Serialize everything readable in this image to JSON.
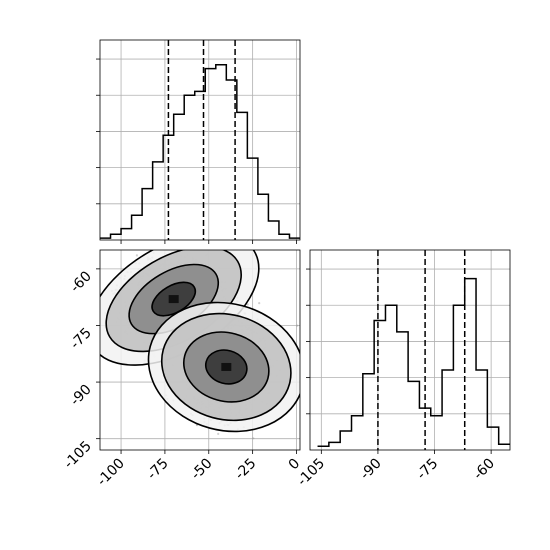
{
  "chart_data": {
    "type": "corner",
    "parameters": [
      "",
      ""
    ],
    "grid": true,
    "panels": [
      {
        "id": "hist-x",
        "type": "histogram",
        "xlim": [
          -112,
          2
        ],
        "ylim": [
          0,
          1.05
        ],
        "ytick_values": [
          0.19,
          0.38,
          0.57,
          0.76,
          0.95
        ],
        "bin_edges": [
          -112,
          -106,
          -100,
          -94,
          -88,
          -82,
          -76,
          -70,
          -64,
          -58,
          -52,
          -46,
          -40,
          -34,
          -28,
          -22,
          -16,
          -10,
          -4,
          2
        ],
        "counts": [
          0.01,
          0.03,
          0.06,
          0.13,
          0.27,
          0.41,
          0.55,
          0.66,
          0.76,
          0.78,
          0.9,
          0.92,
          0.84,
          0.67,
          0.43,
          0.24,
          0.1,
          0.03,
          0.01
        ],
        "quantile_lines": [
          -73,
          -53,
          -35
        ]
      },
      {
        "id": "scatter-2d",
        "type": "2d-density",
        "xlim": [
          -112,
          2
        ],
        "ylim": [
          -108,
          -55
        ],
        "xticks": [
          "-100",
          "-75",
          "-50",
          "-25",
          "0"
        ],
        "xtick_values": [
          -100,
          -75,
          -50,
          -25,
          0
        ],
        "yticks": [
          "-60",
          "-75",
          "-90",
          "-105"
        ],
        "ytick_values": [
          -60,
          -75,
          -90,
          -105
        ],
        "clusters": [
          {
            "center": [
              -70,
              -68
            ],
            "spread": [
              11.5,
              5.2
            ],
            "tilt": 0.28,
            "levels": [
              [
                16,
                4.2
              ],
              [
                33,
                8.7
              ],
              [
                50,
                13.2
              ],
              [
                63,
                16.6
              ]
            ]
          },
          {
            "center": [
              -40,
              -86
            ],
            "spread": [
              9.2,
              5.6
            ],
            "tilt": -0.14,
            "levels": [
              [
                14,
                5.2
              ],
              [
                29,
                10.7
              ],
              [
                44,
                16.4
              ],
              [
                53,
                19.8
              ]
            ]
          }
        ],
        "scatter_points": 2600,
        "contour_fills": [
          "#2a2a2a",
          "#6f6f6f",
          "#a9a9a9",
          "#d8d8d8"
        ]
      },
      {
        "id": "hist-y",
        "type": "histogram",
        "xlim": [
          -108,
          -55
        ],
        "ylim": [
          0,
          1.05
        ],
        "xticks": [
          "-105",
          "-90",
          "-75",
          "-60"
        ],
        "xtick_values": [
          -105,
          -90,
          -75,
          -60
        ],
        "ytick_values": [
          0.19,
          0.38,
          0.57,
          0.76,
          0.95
        ],
        "bin_edges": [
          -106,
          -103,
          -100,
          -97,
          -94,
          -91,
          -88,
          -85,
          -82,
          -79,
          -76,
          -73,
          -70,
          -67,
          -64,
          -61,
          -58,
          -55
        ],
        "counts": [
          0.02,
          0.04,
          0.1,
          0.18,
          0.4,
          0.68,
          0.76,
          0.62,
          0.36,
          0.22,
          0.18,
          0.42,
          0.76,
          0.9,
          0.42,
          0.12,
          0.03
        ],
        "quantile_lines": [
          -90,
          -77.5,
          -67
        ]
      }
    ]
  }
}
